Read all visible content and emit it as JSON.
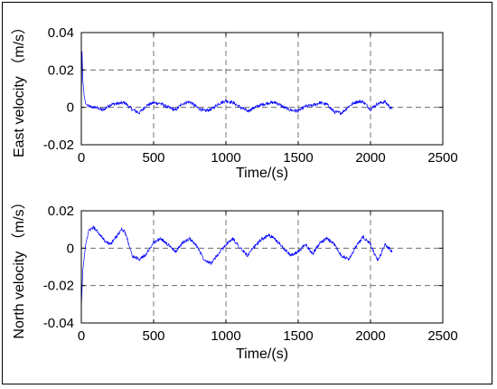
{
  "chart_data": [
    {
      "type": "line",
      "title": "",
      "xlabel": "Time/(s)",
      "ylabel": "East velocity （m/s）",
      "xlim": [
        0,
        2500
      ],
      "ylim": [
        -0.02,
        0.04
      ],
      "x_ticks": [
        0,
        500,
        1000,
        1500,
        2000,
        2500
      ],
      "y_ticks": [
        -0.02,
        0,
        0.02,
        0.04
      ],
      "x_tick_labels": [
        "0",
        "500",
        "1000",
        "1500",
        "2000",
        "2500"
      ],
      "y_tick_labels": [
        "-0.02",
        "0",
        "0.02",
        "0.04"
      ],
      "grid": "dashed",
      "legend": "none",
      "line_color": "#0000ff",
      "series": [
        {
          "x": [
            0,
            5,
            10,
            20,
            30,
            50,
            80,
            100,
            150,
            200,
            250,
            300,
            350,
            400,
            450,
            500,
            550,
            600,
            650,
            700,
            750,
            800,
            850,
            900,
            950,
            1000,
            1050,
            1100,
            1150,
            1200,
            1250,
            1300,
            1350,
            1400,
            1450,
            1500,
            1550,
            1600,
            1650,
            1700,
            1750,
            1800,
            1850,
            1900,
            1950,
            2000,
            2050,
            2100,
            2150
          ],
          "values": [
            0.0,
            0.03,
            0.015,
            0.006,
            0.002,
            0.0005,
            0.0,
            0.0,
            -0.0015,
            0.0015,
            0.002,
            0.0025,
            -0.001,
            -0.003,
            0.001,
            0.0025,
            0.002,
            0.0,
            -0.0015,
            0.002,
            0.003,
            0.0,
            -0.002,
            -0.001,
            0.002,
            0.0035,
            0.0025,
            0.0,
            -0.002,
            0.0,
            0.0015,
            0.0025,
            0.0025,
            0.0,
            -0.0015,
            -0.002,
            0.0005,
            0.001,
            0.0025,
            0.0015,
            -0.0025,
            -0.003,
            0.0005,
            0.003,
            0.003,
            -0.001,
            0.002,
            0.003,
            -0.001
          ]
        }
      ]
    },
    {
      "type": "line",
      "title": "",
      "xlabel": "Time/(s)",
      "ylabel": "North velocity （m/s）",
      "xlim": [
        0,
        2500
      ],
      "ylim": [
        -0.04,
        0.02
      ],
      "x_ticks": [
        0,
        500,
        1000,
        1500,
        2000,
        2500
      ],
      "y_ticks": [
        -0.04,
        -0.02,
        0,
        0.02
      ],
      "x_tick_labels": [
        "0",
        "500",
        "1000",
        "1500",
        "2000",
        "2500"
      ],
      "y_tick_labels": [
        "-0.04",
        "-0.02",
        "0",
        "0.02"
      ],
      "grid": "dashed",
      "legend": "none",
      "line_color": "#0000ff",
      "series": [
        {
          "x": [
            0,
            5,
            10,
            20,
            30,
            50,
            80,
            100,
            130,
            160,
            200,
            250,
            280,
            300,
            330,
            350,
            400,
            450,
            500,
            550,
            600,
            650,
            700,
            750,
            800,
            850,
            900,
            950,
            1000,
            1050,
            1100,
            1150,
            1200,
            1250,
            1300,
            1350,
            1400,
            1450,
            1500,
            1550,
            1600,
            1650,
            1700,
            1750,
            1800,
            1850,
            1900,
            1950,
            2000,
            2050,
            2100,
            2150
          ],
          "values": [
            -0.032,
            -0.022,
            -0.012,
            -0.005,
            0.002,
            0.009,
            0.011,
            0.01,
            0.007,
            0.004,
            0.002,
            0.007,
            0.01,
            0.009,
            0.002,
            -0.004,
            -0.006,
            -0.003,
            0.003,
            0.005,
            0.002,
            -0.002,
            0.003,
            0.005,
            0.001,
            -0.006,
            -0.008,
            -0.003,
            0.002,
            0.005,
            0.0,
            -0.004,
            0.001,
            0.005,
            0.007,
            0.004,
            0.0,
            -0.004,
            -0.002,
            0.002,
            -0.003,
            0.003,
            0.005,
            0.002,
            -0.004,
            -0.006,
            0.001,
            0.006,
            0.002,
            -0.007,
            0.002,
            -0.002
          ]
        }
      ]
    }
  ]
}
